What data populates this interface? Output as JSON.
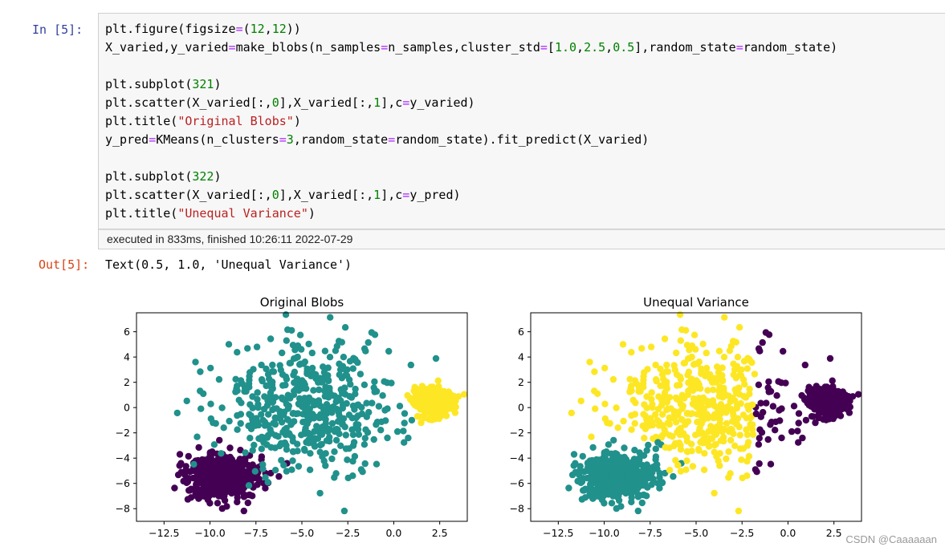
{
  "cell_in": {
    "prompt": "In  [5]:",
    "lines": [
      [
        [
          "plt.figure(figsize",
          ""
        ],
        [
          "=",
          "op"
        ],
        [
          "(",
          ""
        ],
        [
          "12",
          "num"
        ],
        [
          ",",
          ""
        ],
        [
          "12",
          "num"
        ],
        [
          "))",
          ""
        ]
      ],
      [
        [
          "X_varied,y_varied",
          ""
        ],
        [
          "=",
          "op"
        ],
        [
          "make_blobs(n_samples",
          ""
        ],
        [
          "=",
          "op"
        ],
        [
          "n_samples,cluster_std",
          ""
        ],
        [
          "=",
          "op"
        ],
        [
          "[",
          ""
        ],
        [
          "1.0",
          "num"
        ],
        [
          ",",
          ""
        ],
        [
          "2.5",
          "num"
        ],
        [
          ",",
          ""
        ],
        [
          "0.5",
          "num"
        ],
        [
          "],random_state",
          ""
        ],
        [
          "=",
          "op"
        ],
        [
          "random_state)",
          ""
        ]
      ],
      [],
      [
        [
          "plt.subplot(",
          ""
        ],
        [
          "321",
          "num"
        ],
        [
          ")",
          ""
        ]
      ],
      [
        [
          "plt.scatter(X_varied[:,",
          ""
        ],
        [
          "0",
          "num"
        ],
        [
          "],X_varied[:,",
          ""
        ],
        [
          "1",
          "num"
        ],
        [
          "],c",
          ""
        ],
        [
          "=",
          "op"
        ],
        [
          "y_varied)",
          ""
        ]
      ],
      [
        [
          "plt.title(",
          ""
        ],
        [
          "\"Original Blobs\"",
          "str"
        ],
        [
          ")",
          ""
        ]
      ],
      [
        [
          "y_pred",
          ""
        ],
        [
          "=",
          "op"
        ],
        [
          "KMeans(n_clusters",
          ""
        ],
        [
          "=",
          "op"
        ],
        [
          "3",
          "num"
        ],
        [
          ",random_state",
          ""
        ],
        [
          "=",
          "op"
        ],
        [
          "random_state).fit_predict(X_varied)",
          ""
        ]
      ],
      [],
      [
        [
          "plt.subplot(",
          ""
        ],
        [
          "322",
          "num"
        ],
        [
          ")",
          ""
        ]
      ],
      [
        [
          "plt.scatter(X_varied[:,",
          ""
        ],
        [
          "0",
          "num"
        ],
        [
          "],X_varied[:,",
          ""
        ],
        [
          "1",
          "num"
        ],
        [
          "],c",
          ""
        ],
        [
          "=",
          "op"
        ],
        [
          "y_pred)",
          ""
        ]
      ],
      [
        [
          "plt.title(",
          ""
        ],
        [
          "\"Unequal Variance\"",
          "str"
        ],
        [
          ")",
          ""
        ]
      ]
    ],
    "exec_info": "executed in 833ms, finished 10:26:11 2022-07-29"
  },
  "cell_out": {
    "prompt": "Out[5]:",
    "text": "Text(0.5, 1.0, 'Unequal Variance')"
  },
  "watermark": "CSDN @Caaaaaan",
  "colors": {
    "purple": "#440154",
    "teal": "#21918c",
    "yellow": "#fde725"
  },
  "chart_data": [
    {
      "type": "scatter",
      "title": "Original Blobs",
      "xlim": [
        -14,
        4
      ],
      "ylim": [
        -9,
        7.5
      ],
      "xticks": [
        -12.5,
        -10.0,
        -7.5,
        -5.0,
        -2.5,
        0.0,
        2.5
      ],
      "xtick_labels": [
        "−12.5",
        "−10.0",
        "−7.5",
        "−5.0",
        "−2.5",
        "0.0",
        "2.5"
      ],
      "yticks": [
        6,
        4,
        2,
        0,
        -2,
        -4,
        -6,
        -8
      ],
      "ytick_labels": [
        "6",
        "4",
        "2",
        "0",
        "−2",
        "−4",
        "−6",
        "−8"
      ],
      "clusters": [
        {
          "color": "purple",
          "center": [
            -9.3,
            -5.5
          ],
          "std": 1.0,
          "n": 500
        },
        {
          "color": "teal",
          "center": [
            -5.0,
            0.0
          ],
          "std": 2.5,
          "n": 500
        },
        {
          "color": "yellow",
          "center": [
            2.2,
            0.5
          ],
          "std": 0.5,
          "n": 500
        }
      ]
    },
    {
      "type": "scatter",
      "title": "Unequal Variance",
      "xlim": [
        -14,
        4
      ],
      "ylim": [
        -9,
        7.5
      ],
      "xticks": [
        -12.5,
        -10.0,
        -7.5,
        -5.0,
        -2.5,
        0.0,
        2.5
      ],
      "xtick_labels": [
        "−12.5",
        "−10.0",
        "−7.5",
        "−5.0",
        "−2.5",
        "0.0",
        "2.5"
      ],
      "yticks": [
        6,
        4,
        2,
        0,
        -2,
        -4,
        -6,
        -8
      ],
      "ytick_labels": [
        "6",
        "4",
        "2",
        "0",
        "−2",
        "−4",
        "−6",
        "−8"
      ],
      "clusters": [
        {
          "color": "teal",
          "center": [
            -9.3,
            -5.5
          ],
          "std": 1.0,
          "n": 500
        },
        {
          "color": "yellow",
          "center": [
            -5.0,
            0.0
          ],
          "std": 2.5,
          "n": 500
        },
        {
          "color": "purple",
          "center": [
            2.2,
            0.5
          ],
          "std": 0.5,
          "n": 500
        }
      ],
      "relabel_rule": "points left of x=-2.0 in yellow cluster with y < -2.5 and x < -7 become teal; points right of x=-1.5 become purple"
    }
  ]
}
